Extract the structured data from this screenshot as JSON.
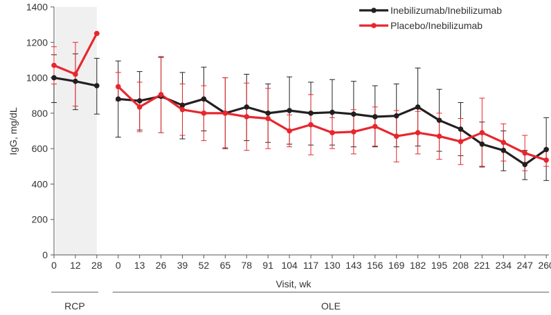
{
  "chart_data": {
    "type": "line",
    "ylabel": "IgG, mg/dL",
    "xlabel": "Visit, wk",
    "ylim": [
      0,
      1400
    ],
    "yticks": [
      0,
      200,
      400,
      600,
      800,
      1000,
      1200,
      1400
    ],
    "grid": false,
    "legend_position": "top-right",
    "categories": [
      "0",
      "12",
      "28",
      "0",
      "13",
      "26",
      "39",
      "52",
      "65",
      "78",
      "91",
      "104",
      "117",
      "130",
      "143",
      "156",
      "169",
      "182",
      "195",
      "208",
      "221",
      "234",
      "247",
      "260"
    ],
    "period_labels": [
      {
        "label": "RCP",
        "from": 0,
        "to": 2
      },
      {
        "label": "OLE",
        "from": 3,
        "to": 23
      }
    ],
    "shaded_period": "RCP",
    "colors": {
      "shade": "#f0f0f0",
      "axis": "#555555"
    },
    "series": [
      {
        "name": "Inebilizumab/Inebilizumab",
        "color": "#231f20",
        "values": [
          1000,
          980,
          955,
          880,
          870,
          895,
          845,
          880,
          800,
          835,
          800,
          815,
          800,
          805,
          795,
          780,
          785,
          835,
          760,
          710,
          625,
          590,
          510,
          595
        ],
        "upper": [
          1130,
          1135,
          1110,
          1095,
          1035,
          1115,
          1030,
          1060,
          1000,
          1020,
          965,
          1005,
          975,
          990,
          980,
          955,
          965,
          1055,
          935,
          860,
          750,
          700,
          590,
          775
        ],
        "lower": [
          860,
          820,
          795,
          665,
          705,
          690,
          655,
          700,
          600,
          645,
          635,
          625,
          620,
          620,
          610,
          610,
          610,
          615,
          585,
          560,
          500,
          475,
          425,
          420
        ]
      },
      {
        "name": "Placebo/Inebilizumab",
        "color": "#e8262d",
        "values": [
          1070,
          1020,
          1250,
          950,
          835,
          905,
          820,
          800,
          800,
          780,
          770,
          700,
          735,
          690,
          695,
          725,
          670,
          690,
          670,
          640,
          690,
          635,
          575,
          535
        ],
        "upper": [
          1175,
          1200,
          1250,
          1030,
          975,
          1120,
          965,
          955,
          1000,
          970,
          940,
          790,
          905,
          775,
          820,
          835,
          815,
          810,
          800,
          770,
          885,
          740,
          675,
          600
        ],
        "lower": [
          965,
          840,
          1250,
          870,
          695,
          690,
          675,
          645,
          605,
          590,
          600,
          610,
          565,
          600,
          570,
          615,
          525,
          570,
          540,
          510,
          495,
          530,
          475,
          500
        ]
      }
    ]
  }
}
